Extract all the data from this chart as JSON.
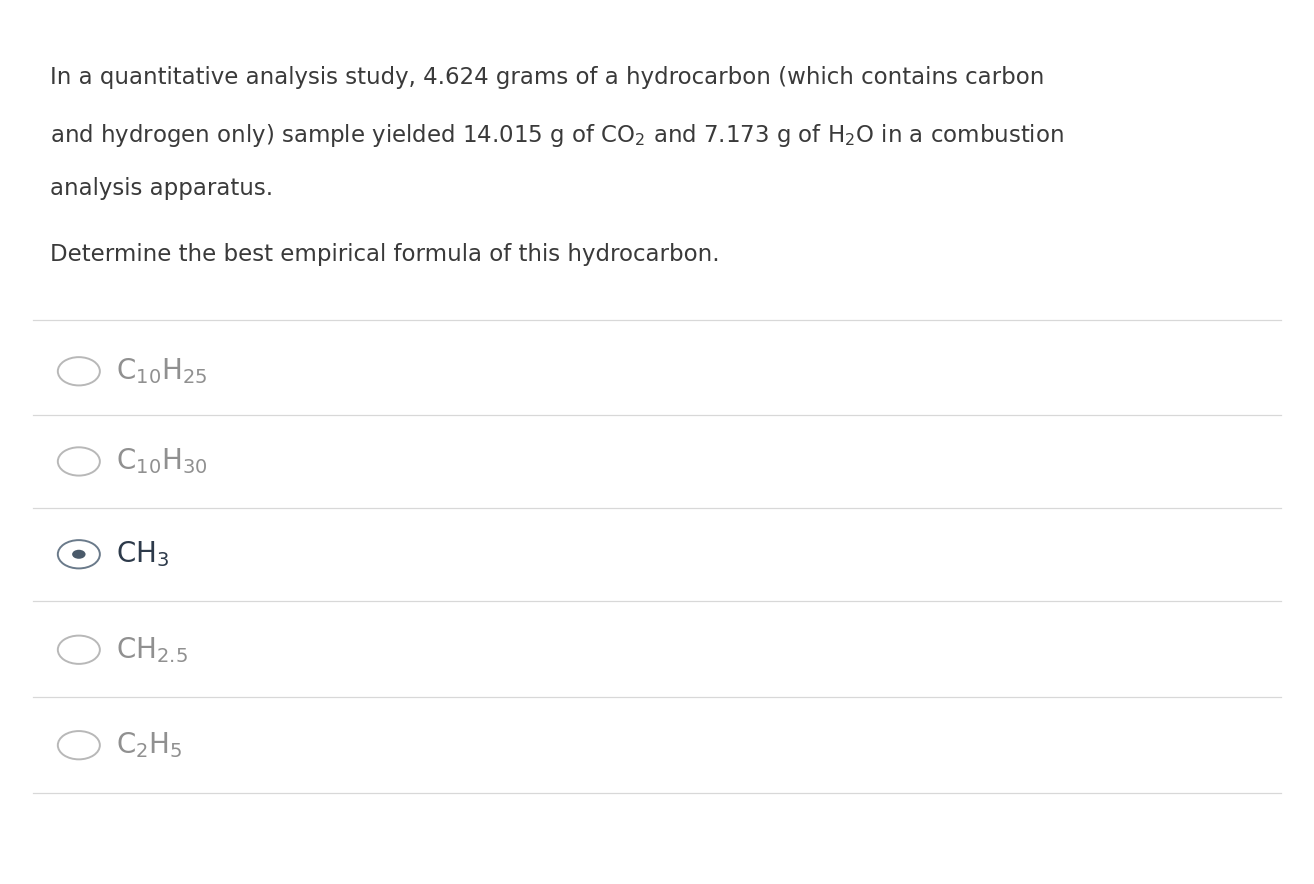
{
  "background_color": "#ffffff",
  "text_color_body": "#3a3a3a",
  "text_color_option_unselected": "#909090",
  "text_color_option_selected": "#2d3a4a",
  "paragraph1_line1": "In a quantitative analysis study, 4.624 grams of a hydrocarbon (which contains carbon",
  "paragraph1_line3": "analysis apparatus.",
  "paragraph2": "Determine the best empirical formula of this hydrocarbon.",
  "options": [
    {
      "formula": "$\\mathregular{C_{10}H_{25}}$",
      "selected": false
    },
    {
      "formula": "$\\mathregular{C_{10}H_{30}}$",
      "selected": false
    },
    {
      "formula": "$\\mathregular{CH_3}$",
      "selected": true
    },
    {
      "formula": "$\\mathregular{CH_{2.5}}$",
      "selected": false
    },
    {
      "formula": "$\\mathregular{C_2H_5}$",
      "selected": false
    }
  ],
  "divider_color": "#d8d8d8",
  "circle_edge_unselected": "#b8b8b8",
  "circle_edge_selected": "#6a7a8a",
  "circle_dot_selected": "#4a5a6a",
  "font_size_body": 16.5,
  "font_size_option": 20
}
